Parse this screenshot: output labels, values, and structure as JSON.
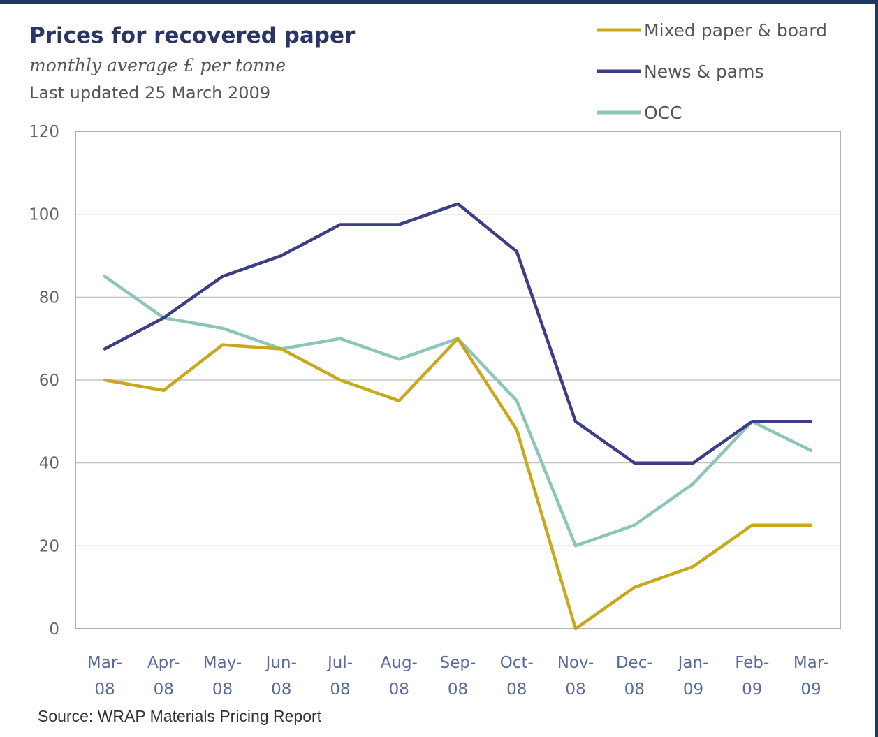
{
  "chart_data": {
    "type": "line",
    "title": "Prices for recovered paper",
    "subtitle": "monthly average £ per tonne",
    "updated": "Last updated 25 March 2009",
    "source": "Source: WRAP Materials Pricing Report",
    "categories": [
      [
        "Mar-",
        "08"
      ],
      [
        "Apr-",
        "08"
      ],
      [
        "May-",
        "08"
      ],
      [
        "Jun-",
        "08"
      ],
      [
        "Jul-",
        "08"
      ],
      [
        "Aug-",
        "08"
      ],
      [
        "Sep-",
        "08"
      ],
      [
        "Oct-",
        "08"
      ],
      [
        "Nov-",
        "08"
      ],
      [
        "Dec-",
        "08"
      ],
      [
        "Jan-",
        "09"
      ],
      [
        "Feb-",
        "09"
      ],
      [
        "Mar-",
        "09"
      ]
    ],
    "ylim": [
      0,
      120
    ],
    "yticks": [
      0,
      20,
      40,
      60,
      80,
      100,
      120
    ],
    "grid": true,
    "legend_position": "top-right",
    "series": [
      {
        "name": "Mixed paper & board",
        "color": "#c9a81e",
        "values": [
          60,
          57.5,
          68.5,
          67.5,
          60,
          55,
          70,
          48,
          0,
          10,
          15,
          25,
          25
        ]
      },
      {
        "name": "News & pams",
        "color": "#3d3f86",
        "values": [
          67.5,
          75,
          85,
          90,
          97.5,
          97.5,
          102.5,
          91,
          50,
          40,
          40,
          50,
          50
        ]
      },
      {
        "name": "OCC",
        "color": "#8cc5b9",
        "values": [
          85,
          75,
          72.5,
          67.5,
          70,
          65,
          70,
          55,
          20,
          25,
          35,
          50,
          43
        ]
      }
    ]
  }
}
